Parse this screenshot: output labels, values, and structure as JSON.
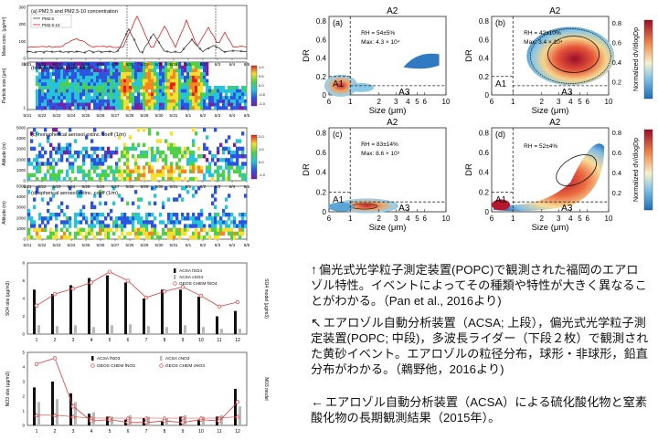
{
  "left_top": {
    "panels": [
      {
        "label": "(a) PM2.5 and PM2.5-10 concentration",
        "ylabel": "Mass conc. [μg/m³]",
        "legend": [
          "PM2.5",
          "PM2.5-10"
        ],
        "yticks": [
          "0",
          "100",
          "200",
          "300"
        ]
      },
      {
        "label": "(b) volume size distribution",
        "ylabel": "Particle size [μm]",
        "yticks": [
          "1",
          "10"
        ],
        "cbar": [
          "1.0",
          "0.5",
          "0.0",
          "-0.5",
          "-1.0"
        ],
        "cbar_label": "Log[dV/dlogD]"
      },
      {
        "label": "(c) nonspherical aerosol extinc. coeff (1/m)",
        "ylabel": "Altitude (m)",
        "yticks": [
          "0",
          "1000",
          "2000",
          "3000",
          "4000",
          "5000"
        ],
        "cbar": [
          "2.0",
          "1.0",
          "0.0",
          "-1.0"
        ],
        "cbar_label": "Ext. coeff. [×10⁻⁴ m⁻¹]"
      },
      {
        "label": "(d) spherical aerosol extinc. coeff (1/m)",
        "ylabel": "Altitude (m)",
        "yticks": [
          "0",
          "1000",
          "2000",
          "3000",
          "4000",
          "5000"
        ]
      }
    ],
    "dates": [
      "5/21",
      "5/22",
      "5/23",
      "5/24",
      "5/25",
      "5/26",
      "5/27",
      "5/28",
      "5/29",
      "5/30",
      "5/31",
      "6/1",
      "6/2",
      "6/3",
      "6/4",
      "6/5"
    ]
  },
  "left_bottom": {
    "so4": {
      "ylabel": "SO4 obs (μg/m3)",
      "y2label": "SO4 model (μg/m3)",
      "yticks": [
        "0",
        "2",
        "4",
        "6",
        "8"
      ],
      "legend": [
        "ACSA fSO4",
        "ACSA cSO4",
        "GEOS CHEM fSO4"
      ],
      "fine": [
        5.0,
        4.5,
        5.5,
        6.3,
        6.6,
        5.8,
        4.0,
        5.0,
        5.0,
        4.2,
        2.0,
        2.6
      ],
      "coarse": [
        1.0,
        0.9,
        1.0,
        0.8,
        1.0,
        1.1,
        0.9,
        0.8,
        1.0,
        0.8,
        0.6,
        0.6
      ],
      "model": [
        3.2,
        4.5,
        5.1,
        5.8,
        7.0,
        6.0,
        4.1,
        4.8,
        5.3,
        4.3,
        3.1,
        3.6
      ]
    },
    "no3": {
      "ylabel": "NO3 obs (μg/m3)",
      "y2label": "NO3 model",
      "yticks": [
        "0",
        "1",
        "2",
        "3",
        "4",
        "5"
      ],
      "legend": [
        "ACSA fNO3",
        "ACSA cNO3",
        "GEOS CHEM fNO3",
        "GEOS CHEM cNO3"
      ],
      "fine": [
        2.6,
        3.0,
        2.2,
        0.8,
        0.6,
        0.4,
        0.5,
        0.3,
        0.6,
        0.4,
        0.6,
        2.5
      ],
      "coarse": [
        1.6,
        1.8,
        1.6,
        0.9,
        0.6,
        0.7,
        0.6,
        0.5,
        0.7,
        0.6,
        0.7,
        1.3
      ],
      "model": [
        4.2,
        4.6,
        1.3,
        0.3,
        0.4,
        0.2,
        0.2,
        0.3,
        0.2,
        0.4,
        0.3,
        1.6
      ],
      "model_c": [
        0.7,
        0.7,
        0.6,
        0.5,
        0.5,
        0.5,
        0.5,
        0.5,
        0.5,
        0.5,
        0.5,
        0.6
      ]
    },
    "months": [
      "1",
      "2",
      "3",
      "4",
      "5",
      "6",
      "7",
      "8",
      "9",
      "10",
      "11",
      "12"
    ]
  },
  "right_top": {
    "xlabel": "Size (μm)",
    "ylabel": "DR",
    "yticks": [
      "0",
      "0.2",
      "0.4",
      "0.6",
      "0.8"
    ],
    "xticks_major": [
      "1",
      "10"
    ],
    "xticks_minor": [
      "2",
      "3",
      "4",
      "5",
      "6"
    ],
    "region_labels": [
      "A1",
      "A2",
      "A3"
    ],
    "cbar_label": "Normalized dV/dlogDp",
    "cbar_ticks": [
      "0.8",
      "0.6",
      "0.4",
      "0.2"
    ],
    "panels": [
      {
        "tag": "(a)",
        "rh": "RH = 54±5%",
        "max": "Max: 4.3 × 10⁴"
      },
      {
        "tag": "(b)",
        "rh": "RH = 42±10%",
        "max": "Max: 3.4 × 10⁴"
      },
      {
        "tag": "(c)",
        "rh": "RH = 83±14%",
        "max": "Max: 8.6 × 10³"
      },
      {
        "tag": "(d)",
        "rh": "RH = 52±4%",
        "max": ""
      }
    ]
  },
  "captions": {
    "c1": "偏光式光学粒子測定装置(POPC)で観測された福岡のエアロゾル特性。イベントによってその種類や特性が大きく異なることがわかる。（Pan et al., 2016より)",
    "c2": "エアロゾル自動分析装置（ACSA; 上段），偏光式光学粒子測定装置(POPC; 中段)，多波長ライダー（下段２枚）で観測された黄砂イベント。エアロゾルの粒径分布，球形・非球形，鉛直分布がわかる。（鵜野他，2016より)",
    "c3": "エアロゾル自動分析装置（ACSA）による硫化酸化物と窒素酸化物の長期観測結果（2015年）。",
    "arrow_up": "↑",
    "arrow_ul": "↖",
    "arrow_left": "←"
  }
}
